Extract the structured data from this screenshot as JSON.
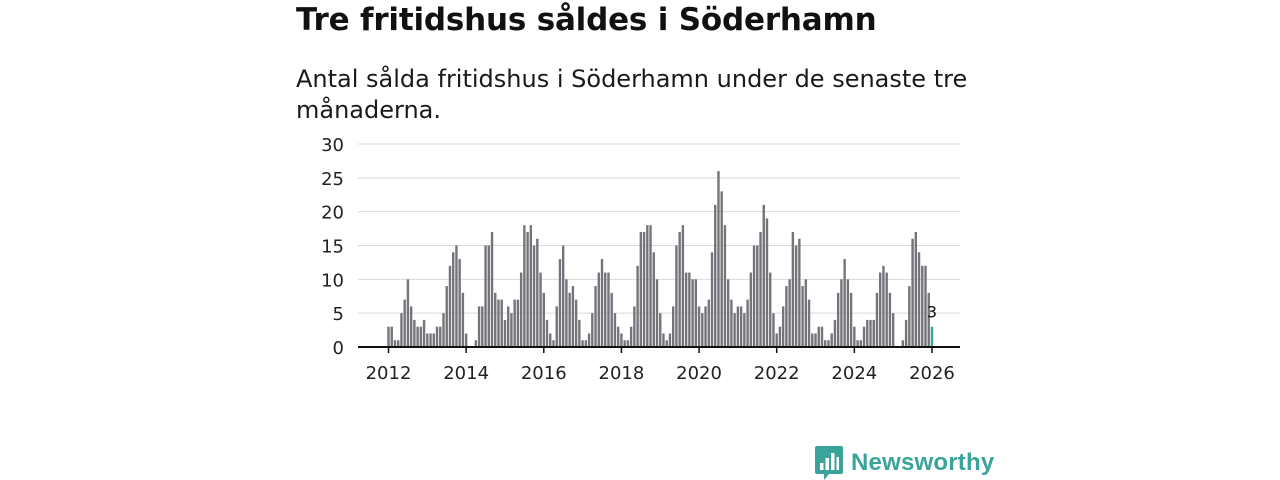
{
  "title": "Tre fritidshus såldes i Söderhamn",
  "subtitle": "Antal sålda fritidshus i Söderhamn under de senaste tre månaderna.",
  "brand": {
    "name": "Newsworthy",
    "color": "#3aa39a",
    "icon": "newsworthy-logo-icon"
  },
  "colors": {
    "bar": "#75747a",
    "highlight": "#3aa39a",
    "grid": "#d9d9d9",
    "axis": "#111111"
  },
  "chart_data": {
    "type": "bar",
    "title": "Tre fritidshus såldes i Söderhamn",
    "subtitle": "Antal sålda fritidshus i Söderhamn under de senaste tre månaderna.",
    "xlabel": "",
    "ylabel": "",
    "grid": true,
    "ylim": [
      0,
      30
    ],
    "yticks": [
      0,
      5,
      10,
      15,
      20,
      25,
      30
    ],
    "xticks": [
      "2012",
      "2014",
      "2016",
      "2018",
      "2020",
      "2022",
      "2024",
      "2026"
    ],
    "x_start": "2012-01",
    "x_end": "2026-01",
    "values": [
      3,
      3,
      1,
      1,
      5,
      7,
      10,
      6,
      4,
      3,
      3,
      4,
      2,
      2,
      2,
      3,
      3,
      5,
      9,
      12,
      14,
      15,
      13,
      8,
      2,
      0,
      0,
      1,
      6,
      6,
      15,
      15,
      17,
      8,
      7,
      7,
      4,
      6,
      5,
      7,
      7,
      11,
      18,
      17,
      18,
      15,
      16,
      11,
      8,
      4,
      2,
      1,
      6,
      13,
      15,
      10,
      8,
      9,
      7,
      4,
      1,
      1,
      2,
      5,
      9,
      11,
      13,
      11,
      11,
      8,
      5,
      3,
      2,
      1,
      1,
      3,
      6,
      12,
      17,
      17,
      18,
      18,
      14,
      10,
      5,
      2,
      1,
      2,
      6,
      15,
      17,
      18,
      11,
      11,
      10,
      10,
      6,
      5,
      6,
      7,
      14,
      21,
      26,
      23,
      18,
      10,
      7,
      5,
      6,
      6,
      5,
      7,
      11,
      15,
      15,
      17,
      21,
      19,
      11,
      5,
      2,
      3,
      6,
      9,
      10,
      17,
      15,
      16,
      9,
      10,
      7,
      2,
      2,
      3,
      3,
      1,
      1,
      2,
      4,
      8,
      10,
      13,
      10,
      8,
      3,
      1,
      1,
      3,
      4,
      4,
      4,
      8,
      11,
      12,
      11,
      8,
      5,
      0,
      0,
      1,
      4,
      9,
      16,
      17,
      14,
      12,
      12,
      8,
      3
    ],
    "highlight_index": 168,
    "annotation": {
      "index": 168,
      "label": "3"
    }
  }
}
